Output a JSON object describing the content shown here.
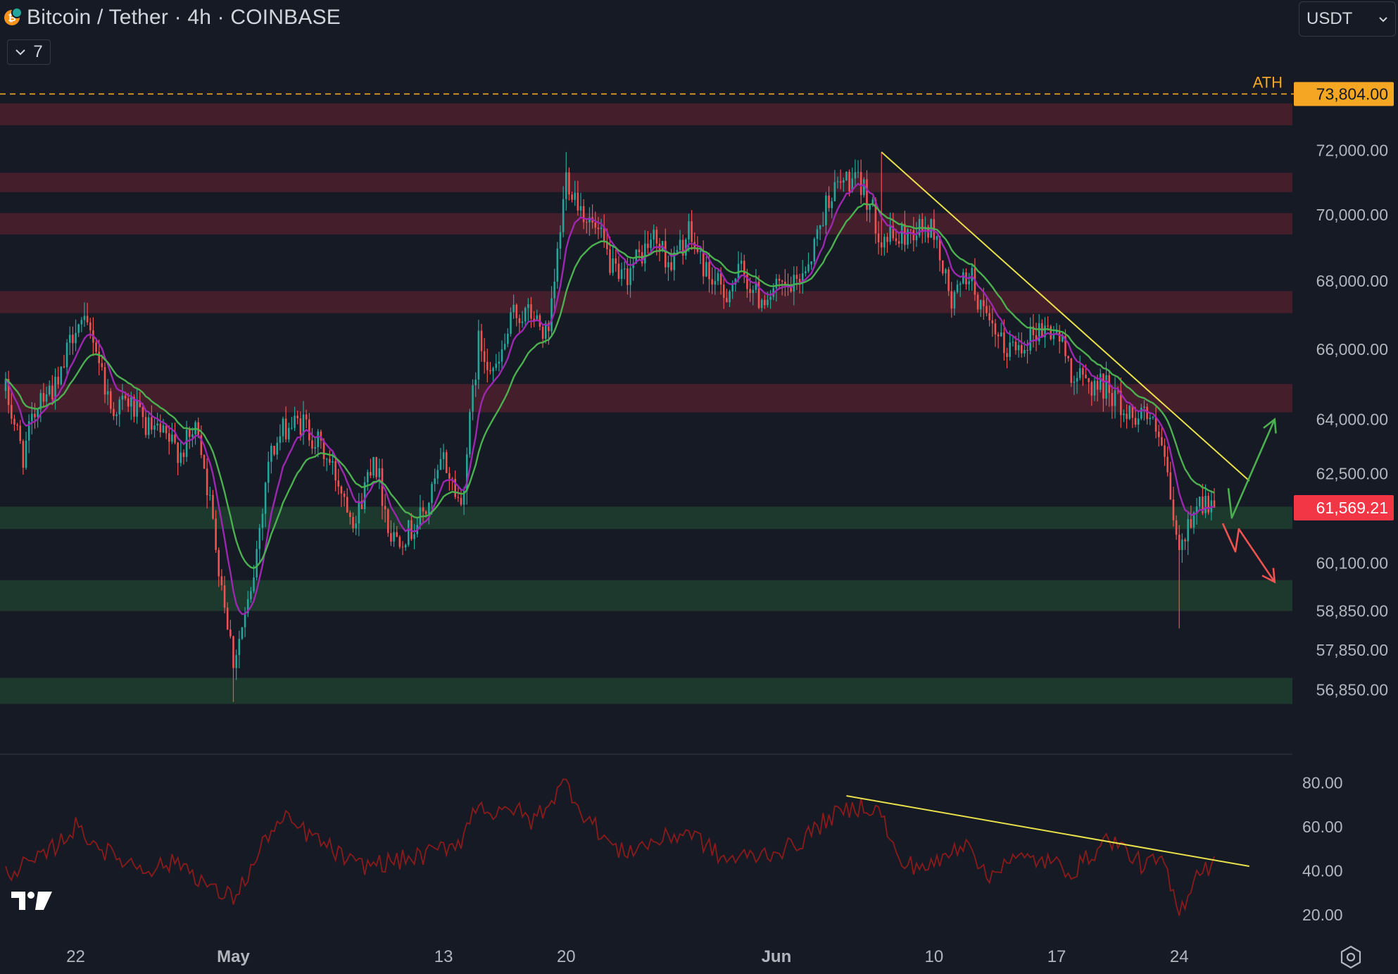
{
  "header": {
    "title": "Bitcoin / Tether · 4h · COINBASE",
    "indicators_count": "7",
    "currency": "USDT"
  },
  "icons": {
    "symbol_logo": "bitcoin-icon",
    "dropdown": "chevron-down-icon",
    "brand": "tradingview-logo-icon",
    "settings": "settings-icon"
  },
  "colors": {
    "background": "#161a25",
    "up_candle": "#26a69a",
    "down_candle": "#ef5350",
    "resistance_zone": "#4a1f2c",
    "support_zone": "#1e3a2c",
    "trendline": "#e8e04a",
    "ath_line": "#f5a623",
    "ema_fast": "#9c27b0",
    "ema_slow": "#4caf50",
    "rsi_line": "#8b1a1a",
    "last_price_tag": "#f23645"
  },
  "chart_data": [
    {
      "type": "candlestick",
      "title": "Bitcoin / Tether · 4h · COINBASE",
      "y_axis_scale": "log",
      "ylim": [
        55800,
        74800
      ],
      "y_ticks": [
        "72,000.00",
        "70,000.00",
        "68,000.00",
        "66,000.00",
        "64,000.00",
        "62,500.00",
        "60,100.00",
        "58,850.00",
        "57,850.00",
        "56,850.00"
      ],
      "y_tick_values": [
        72000,
        70000,
        68000,
        66000,
        64000,
        62500,
        60100,
        58850,
        57850,
        56850
      ],
      "x_ticks": [
        "22",
        "May",
        "13",
        "20",
        "Jun",
        "10",
        "17",
        "24"
      ],
      "x_tick_dates": [
        "2024-04-22",
        "2024-05-01",
        "2024-05-13",
        "2024-05-20",
        "2024-06-01",
        "2024-06-10",
        "2024-06-17",
        "2024-06-24"
      ],
      "x_range": [
        "2024-04-18",
        "2024-06-26"
      ],
      "close_path": [
        [
          "2024-04-18",
          64800
        ],
        [
          "2024-04-19",
          63000
        ],
        [
          "2024-04-20",
          64800
        ],
        [
          "2024-04-21",
          64900
        ],
        [
          "2024-04-22",
          66800
        ],
        [
          "2024-04-23",
          66400
        ],
        [
          "2024-04-24",
          64300
        ],
        [
          "2024-04-25",
          64500
        ],
        [
          "2024-04-26",
          63800
        ],
        [
          "2024-04-27",
          63500
        ],
        [
          "2024-04-28",
          63100
        ],
        [
          "2024-04-29",
          63800
        ],
        [
          "2024-04-30",
          60600
        ],
        [
          "2024-05-01",
          57600
        ],
        [
          "2024-05-02",
          59200
        ],
        [
          "2024-05-03",
          62900
        ],
        [
          "2024-05-04",
          63800
        ],
        [
          "2024-05-05",
          63900
        ],
        [
          "2024-05-06",
          63200
        ],
        [
          "2024-05-07",
          62300
        ],
        [
          "2024-05-08",
          61200
        ],
        [
          "2024-05-09",
          63100
        ],
        [
          "2024-05-10",
          60800
        ],
        [
          "2024-05-11",
          60900
        ],
        [
          "2024-05-12",
          61500
        ],
        [
          "2024-05-13",
          62900
        ],
        [
          "2024-05-14",
          61600
        ],
        [
          "2024-05-15",
          66200
        ],
        [
          "2024-05-16",
          65300
        ],
        [
          "2024-05-17",
          67000
        ],
        [
          "2024-05-18",
          67000
        ],
        [
          "2024-05-19",
          66300
        ],
        [
          "2024-05-20",
          71200
        ],
        [
          "2024-05-21",
          70100
        ],
        [
          "2024-05-22",
          69200
        ],
        [
          "2024-05-23",
          67900
        ],
        [
          "2024-05-24",
          68600
        ],
        [
          "2024-05-25",
          69300
        ],
        [
          "2024-05-26",
          68500
        ],
        [
          "2024-05-27",
          69400
        ],
        [
          "2024-05-28",
          68300
        ],
        [
          "2024-05-29",
          67600
        ],
        [
          "2024-05-30",
          68300
        ],
        [
          "2024-05-31",
          67500
        ],
        [
          "2024-06-01",
          67700
        ],
        [
          "2024-06-02",
          67800
        ],
        [
          "2024-06-03",
          68800
        ],
        [
          "2024-06-04",
          70600
        ],
        [
          "2024-06-05",
          71100
        ],
        [
          "2024-06-06",
          70800
        ],
        [
          "2024-06-07",
          69300
        ],
        [
          "2024-06-08",
          69300
        ],
        [
          "2024-06-09",
          69600
        ],
        [
          "2024-06-10",
          69500
        ],
        [
          "2024-06-11",
          67300
        ],
        [
          "2024-06-12",
          68300
        ],
        [
          "2024-06-13",
          66700
        ],
        [
          "2024-06-14",
          66000
        ],
        [
          "2024-06-15",
          66200
        ],
        [
          "2024-06-16",
          66600
        ],
        [
          "2024-06-17",
          66500
        ],
        [
          "2024-06-18",
          65200
        ],
        [
          "2024-06-19",
          65000
        ],
        [
          "2024-06-20",
          64900
        ],
        [
          "2024-06-21",
          64100
        ],
        [
          "2024-06-22",
          64300
        ],
        [
          "2024-06-23",
          63200
        ],
        [
          "2024-06-24",
          60300
        ],
        [
          "2024-06-25",
          61800
        ],
        [
          "2024-06-26",
          61569
        ]
      ],
      "low_wicks": [
        [
          "2024-05-01",
          56550
        ],
        [
          "2024-06-24",
          58400
        ]
      ],
      "high_wicks": [
        [
          "2024-05-20",
          71950
        ],
        [
          "2024-06-07",
          71950
        ]
      ],
      "last_price": "61,569.21",
      "ath": {
        "label": "ATH",
        "value": 73804,
        "value_label": "73,804.00"
      },
      "resistance_zones": [
        [
          72800,
          73500
        ],
        [
          70700,
          71300
        ],
        [
          69400,
          70050
        ],
        [
          67050,
          67700
        ],
        [
          64200,
          65000
        ]
      ],
      "support_zones": [
        [
          61000,
          61600
        ],
        [
          58850,
          59650
        ],
        [
          56500,
          57150
        ]
      ],
      "trendline": {
        "start": [
          "2024-06-07",
          71950
        ],
        "end": [
          "2024-06-28",
          62300
        ]
      },
      "scenario_arrows": {
        "bullish": [
          [
            "2024-06-26",
            62100
          ],
          [
            "2024-06-27",
            61300
          ],
          [
            "2024-06-28",
            64000
          ]
        ],
        "bearish": [
          [
            "2024-06-26",
            61150
          ],
          [
            "2024-06-26",
            60400
          ],
          [
            "2024-06-27",
            61000
          ],
          [
            "2024-06-28",
            59600
          ]
        ]
      },
      "moving_averages": [
        "fast EMA (purple)",
        "slow EMA (green)"
      ]
    },
    {
      "type": "line",
      "indicator": "RSI",
      "ylim": [
        10,
        90
      ],
      "y_ticks": [
        "80.00",
        "60.00",
        "40.00",
        "20.00"
      ],
      "y_tick_values": [
        80,
        60,
        40,
        20
      ],
      "values_path": [
        [
          "2024-04-18",
          39
        ],
        [
          "2024-04-20",
          45
        ],
        [
          "2024-04-22",
          60
        ],
        [
          "2024-04-24",
          47
        ],
        [
          "2024-04-26",
          41
        ],
        [
          "2024-04-28",
          44
        ],
        [
          "2024-04-30",
          30
        ],
        [
          "2024-05-01",
          28
        ],
        [
          "2024-05-02",
          40
        ],
        [
          "2024-05-03",
          57
        ],
        [
          "2024-05-04",
          63
        ],
        [
          "2024-05-06",
          53
        ],
        [
          "2024-05-08",
          42
        ],
        [
          "2024-05-10",
          44
        ],
        [
          "2024-05-12",
          47
        ],
        [
          "2024-05-14",
          54
        ],
        [
          "2024-05-15",
          72
        ],
        [
          "2024-05-16",
          64
        ],
        [
          "2024-05-17",
          69
        ],
        [
          "2024-05-18",
          62
        ],
        [
          "2024-05-20",
          80
        ],
        [
          "2024-05-21",
          66
        ],
        [
          "2024-05-23",
          48
        ],
        [
          "2024-05-25",
          53
        ],
        [
          "2024-05-27",
          58
        ],
        [
          "2024-05-29",
          45
        ],
        [
          "2024-05-31",
          47
        ],
        [
          "2024-06-02",
          51
        ],
        [
          "2024-06-04",
          64
        ],
        [
          "2024-06-06",
          70
        ],
        [
          "2024-06-07",
          66
        ],
        [
          "2024-06-08",
          43
        ],
        [
          "2024-06-10",
          42
        ],
        [
          "2024-06-12",
          55
        ],
        [
          "2024-06-13",
          35
        ],
        [
          "2024-06-14",
          45
        ],
        [
          "2024-06-16",
          45
        ],
        [
          "2024-06-18",
          40
        ],
        [
          "2024-06-20",
          55
        ],
        [
          "2024-06-22",
          42
        ],
        [
          "2024-06-23",
          45
        ],
        [
          "2024-06-24",
          20
        ],
        [
          "2024-06-25",
          40
        ],
        [
          "2024-06-26",
          43
        ]
      ],
      "divergence_line": {
        "start": [
          "2024-06-05",
          74
        ],
        "end": [
          "2024-06-28",
          42
        ]
      }
    }
  ]
}
